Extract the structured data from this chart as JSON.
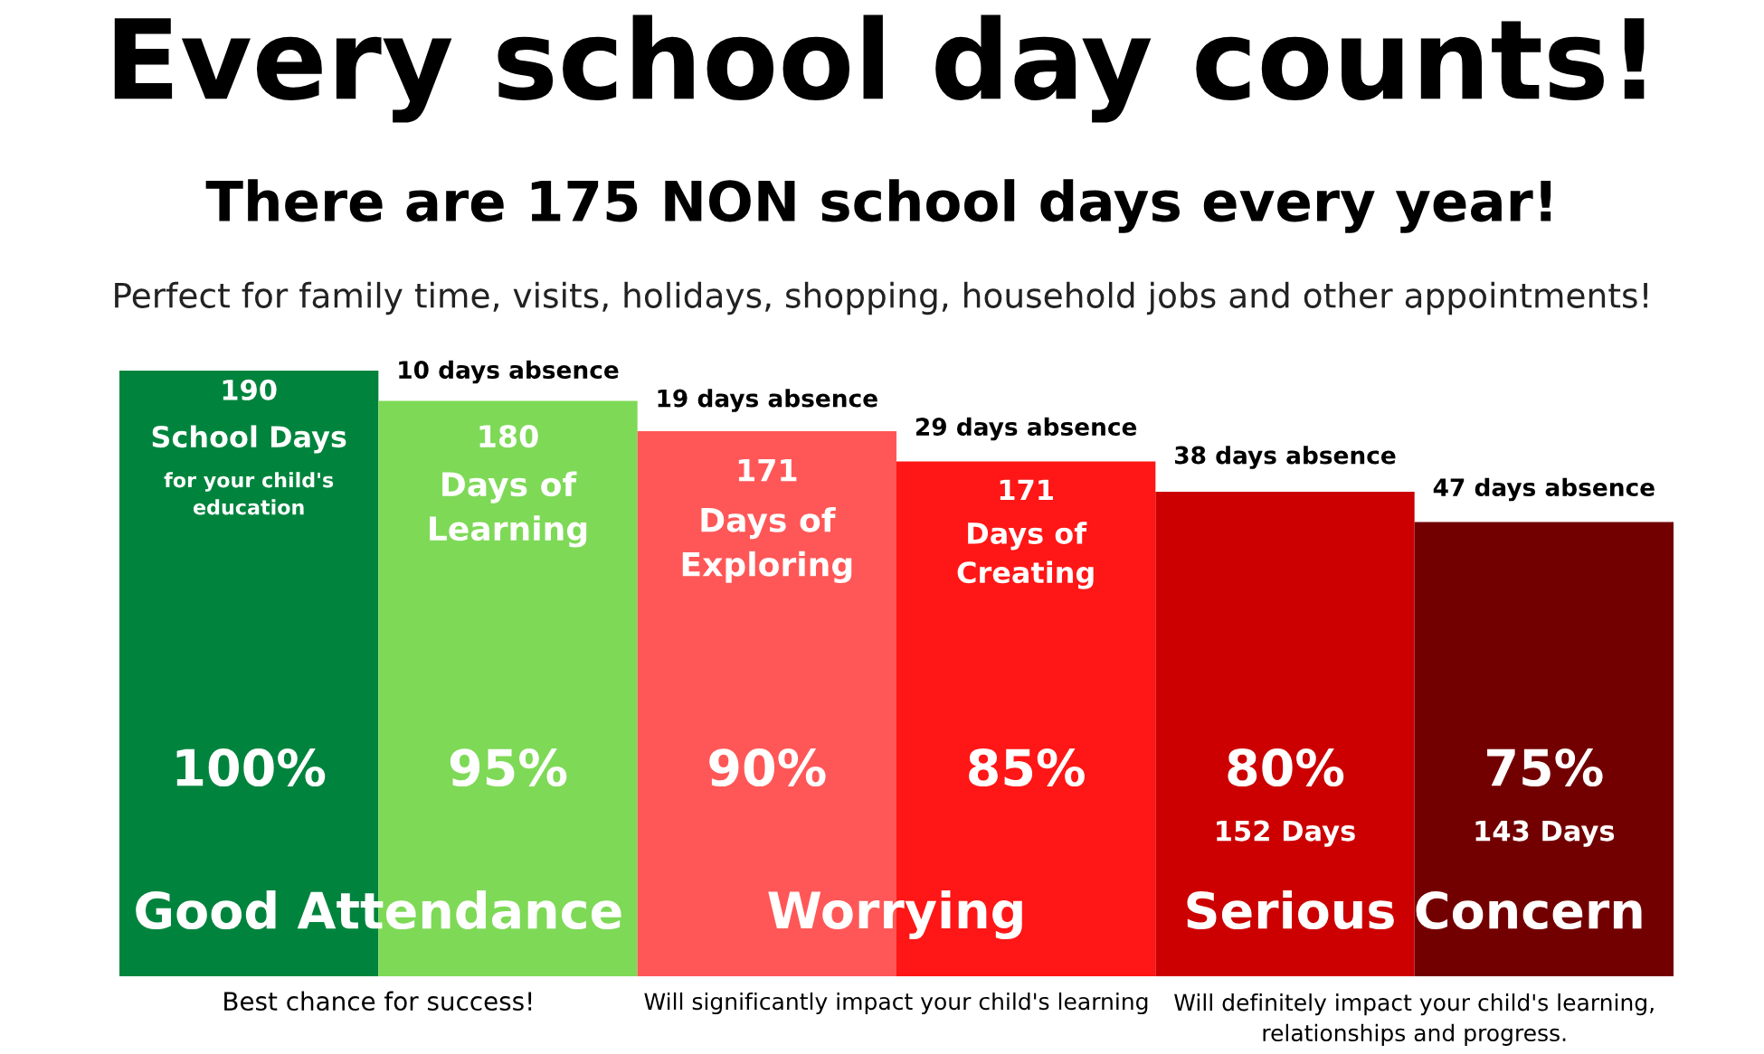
{
  "chart_data": {
    "type": "bar",
    "title": "Every school day counts!",
    "subtitle": "There are 175 NON school days every year!",
    "categories": [
      null,
      null,
      null,
      null,
      null,
      null
    ],
    "values": [
      100,
      95,
      90,
      85,
      80,
      75
    ],
    "colors": [
      "#00843d",
      "#7ed957",
      "#ff5757",
      "#ff1616",
      "#cc0000",
      "#730000"
    ],
    "value_labels": [
      "100%",
      "95%",
      "90%",
      "85%",
      "80%",
      "75%"
    ],
    "annotations": [
      "Perfect for family time, visits, holidays, shopping, household jobs and other appointments!",
      "190",
      "School Days",
      "for your child's\neducation",
      "180",
      "Days of\nLearning",
      "10 days absence",
      "19 days absence",
      "171",
      "Days of\nExploring",
      "29 days absence",
      "171",
      "Days of\nCreating",
      "38 days absence",
      "152 Days",
      "47 days absence",
      "143 Days",
      "Good Attendance",
      "Worrying",
      "Serious Concern",
      "Best chance for success!",
      "Will significantly impact your child's learning",
      "Will definitely impact your child's learning,\nrelationships and progress."
    ],
    "grid": false,
    "legend": false
  }
}
